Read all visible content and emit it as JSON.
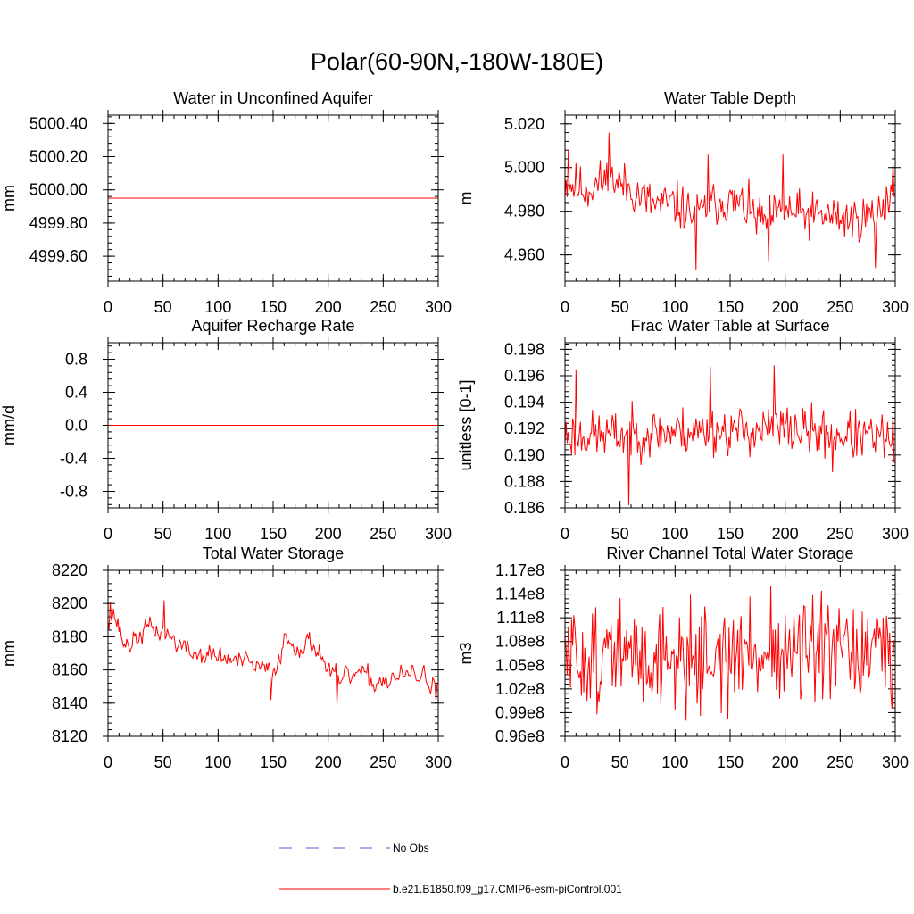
{
  "figure": {
    "title": "Polar(60-90N,-180W-180E)"
  },
  "legend": {
    "entries": [
      {
        "label": "No Obs",
        "color": "#5a5adc",
        "style": "dashed"
      },
      {
        "label": "b.e21.B1850.f09_g17.CMIP6-esm-piControl.001",
        "color": "#ff0000",
        "style": "solid"
      }
    ]
  },
  "chart_data": [
    {
      "type": "line",
      "title": "Water in Unconfined Aquifer",
      "xlabel": "",
      "ylabel": "mm",
      "xlim": [
        0,
        300
      ],
      "ylim": [
        4999.45,
        5000.45
      ],
      "xticks": [
        0,
        50,
        100,
        150,
        200,
        250,
        300
      ],
      "xtick_labels": [
        "0",
        "50",
        "100",
        "150",
        "200",
        "250",
        "300"
      ],
      "yticks": [
        4999.6,
        4999.8,
        5000.0,
        5000.2,
        5000.4
      ],
      "ytick_labels": [
        "4999.60",
        "4999.80",
        "5000.00",
        "5000.20",
        "5000.40"
      ],
      "y_minor_step": 0.04,
      "series": [
        {
          "name": "b.e21.B1850.f09_g17.CMIP6-esm-piControl.001",
          "kind": "constant",
          "value": 4999.95,
          "color": "#ff0000"
        }
      ]
    },
    {
      "type": "line",
      "title": "Water Table Depth",
      "xlabel": "",
      "ylabel": "m",
      "xlim": [
        0,
        300
      ],
      "ylim": [
        4.948,
        5.024
      ],
      "xticks": [
        0,
        50,
        100,
        150,
        200,
        250,
        300
      ],
      "xtick_labels": [
        "0",
        "50",
        "100",
        "150",
        "200",
        "250",
        "300"
      ],
      "yticks": [
        4.96,
        4.98,
        5.0,
        5.02
      ],
      "ytick_labels": [
        "4.960",
        "4.980",
        "5.000",
        "5.020"
      ],
      "y_minor_step": 0.004,
      "series": [
        {
          "name": "b.e21.B1850.f09_g17.CMIP6-esm-piControl.001",
          "kind": "noisy",
          "n": 300,
          "seed": 11,
          "color": "#ff0000",
          "anchors": [
            [
              0,
              4.993
            ],
            [
              20,
              4.99
            ],
            [
              40,
              4.995
            ],
            [
              60,
              4.99
            ],
            [
              80,
              4.983
            ],
            [
              100,
              4.983
            ],
            [
              120,
              4.978
            ],
            [
              140,
              4.985
            ],
            [
              160,
              4.983
            ],
            [
              180,
              4.975
            ],
            [
              200,
              4.98
            ],
            [
              220,
              4.978
            ],
            [
              240,
              4.978
            ],
            [
              260,
              4.976
            ],
            [
              280,
              4.978
            ],
            [
              300,
              4.99
            ]
          ],
          "noise": 0.0075,
          "min": 4.953,
          "max": 5.016,
          "pinned": [
            [
              3,
              5.008
            ],
            [
              40,
              5.016
            ],
            [
              119,
              4.953
            ],
            [
              130,
              5.006
            ],
            [
              185,
              4.957
            ],
            [
              198,
              5.006
            ],
            [
              282,
              4.954
            ],
            [
              298,
              5.002
            ]
          ]
        }
      ]
    },
    {
      "type": "line",
      "title": "Aquifer Recharge Rate",
      "xlabel": "",
      "ylabel": "mm/d",
      "xlim": [
        0,
        300
      ],
      "ylim": [
        -1.0,
        1.0
      ],
      "xticks": [
        0,
        50,
        100,
        150,
        200,
        250,
        300
      ],
      "xtick_labels": [
        "0",
        "50",
        "100",
        "150",
        "200",
        "250",
        "300"
      ],
      "yticks": [
        -0.8,
        -0.4,
        0.0,
        0.4,
        0.8
      ],
      "ytick_labels": [
        "-0.8",
        "-0.4",
        "0.0",
        "0.4",
        "0.8"
      ],
      "y_minor_step": 0.08,
      "series": [
        {
          "name": "b.e21.B1850.f09_g17.CMIP6-esm-piControl.001",
          "kind": "constant",
          "value": 0.0,
          "color": "#ff0000"
        }
      ]
    },
    {
      "type": "line",
      "title": "Frac Water Table at Surface",
      "xlabel": "",
      "ylabel": "unitless [0-1]",
      "xlim": [
        0,
        300
      ],
      "ylim": [
        0.186,
        0.1985
      ],
      "xticks": [
        0,
        50,
        100,
        150,
        200,
        250,
        300
      ],
      "xtick_labels": [
        "0",
        "50",
        "100",
        "150",
        "200",
        "250",
        "300"
      ],
      "yticks": [
        0.186,
        0.188,
        0.19,
        0.192,
        0.194,
        0.196,
        0.198
      ],
      "ytick_labels": [
        "0.186",
        "0.188",
        "0.190",
        "0.192",
        "0.194",
        "0.196",
        "0.198"
      ],
      "y_minor_step": 0.0004,
      "series": [
        {
          "name": "b.e21.B1850.f09_g17.CMIP6-esm-piControl.001",
          "kind": "noisy",
          "n": 300,
          "seed": 23,
          "color": "#ff0000",
          "anchors": [
            [
              0,
              0.1915
            ],
            [
              50,
              0.1915
            ],
            [
              100,
              0.1918
            ],
            [
              150,
              0.1918
            ],
            [
              200,
              0.192
            ],
            [
              250,
              0.1915
            ],
            [
              300,
              0.1912
            ]
          ],
          "noise": 0.0013,
          "min": 0.1862,
          "max": 0.1968,
          "pinned": [
            [
              10,
              0.1965
            ],
            [
              58,
              0.1862
            ],
            [
              132,
              0.1967
            ],
            [
              190,
              0.1968
            ],
            [
              243,
              0.1887
            ]
          ]
        }
      ]
    },
    {
      "type": "line",
      "title": "Total Water Storage",
      "xlabel": "",
      "ylabel": "mm",
      "xlim": [
        0,
        300
      ],
      "ylim": [
        8120,
        8220
      ],
      "xticks": [
        0,
        50,
        100,
        150,
        200,
        250,
        300
      ],
      "xtick_labels": [
        "0",
        "50",
        "100",
        "150",
        "200",
        "250",
        "300"
      ],
      "yticks": [
        8120,
        8140,
        8160,
        8180,
        8200,
        8220
      ],
      "ytick_labels": [
        "8120",
        "8140",
        "8160",
        "8180",
        "8200",
        "8220"
      ],
      "y_minor_step": 4,
      "series": [
        {
          "name": "b.e21.B1850.f09_g17.CMIP6-esm-piControl.001",
          "kind": "smooth",
          "n": 300,
          "seed": 37,
          "color": "#ff0000",
          "anchors": [
            [
              0,
              8192
            ],
            [
              5,
              8195
            ],
            [
              15,
              8175
            ],
            [
              25,
              8178
            ],
            [
              35,
              8185
            ],
            [
              50,
              8183
            ],
            [
              60,
              8178
            ],
            [
              75,
              8170
            ],
            [
              100,
              8168
            ],
            [
              125,
              8164
            ],
            [
              150,
              8158
            ],
            [
              160,
              8178
            ],
            [
              175,
              8175
            ],
            [
              190,
              8175
            ],
            [
              200,
              8160
            ],
            [
              210,
              8152
            ],
            [
              225,
              8158
            ],
            [
              240,
              8153
            ],
            [
              260,
              8155
            ],
            [
              280,
              8157
            ],
            [
              300,
              8152
            ]
          ],
          "noise": 5,
          "smooth": 0.45,
          "pinned": [
            [
              2,
              8201
            ],
            [
              51,
              8202
            ],
            [
              148,
              8142
            ],
            [
              208,
              8139
            ],
            [
              298,
              8141
            ]
          ]
        }
      ]
    },
    {
      "type": "line",
      "title": "River Channel Total Water Storage",
      "xlabel": "",
      "ylabel": "m3",
      "xlim": [
        0,
        300
      ],
      "ylim": [
        96000000.0,
        117000000.0
      ],
      "xticks": [
        0,
        50,
        100,
        150,
        200,
        250,
        300
      ],
      "xtick_labels": [
        "0",
        "50",
        "100",
        "150",
        "200",
        "250",
        "300"
      ],
      "yticks": [
        96000000.0,
        99000000.0,
        102000000.0,
        105000000.0,
        108000000.0,
        111000000.0,
        114000000.0,
        117000000.0
      ],
      "ytick_labels": [
        "0.96e8",
        "0.99e8",
        "1.02e8",
        "1.05e8",
        "1.08e8",
        "1.11e8",
        "1.14e8",
        "1.17e8"
      ],
      "y_minor_step": 600000.0,
      "series": [
        {
          "name": "b.e21.B1850.f09_g17.CMIP6-esm-piControl.001",
          "kind": "noisy",
          "n": 300,
          "seed": 51,
          "color": "#ff0000",
          "anchors": [
            [
              0,
              106000000.0
            ],
            [
              100,
              106000000.0
            ],
            [
              200,
              106500000.0
            ],
            [
              300,
              106000000.0
            ]
          ],
          "noise": 4500000.0,
          "min": 98000000.0,
          "max": 115000000.0,
          "pinned": [
            [
              50,
              113500000.0
            ],
            [
              148,
              98200000.0
            ],
            [
              187,
              115000000.0
            ],
            [
              297,
              99500000.0
            ]
          ]
        }
      ]
    }
  ]
}
